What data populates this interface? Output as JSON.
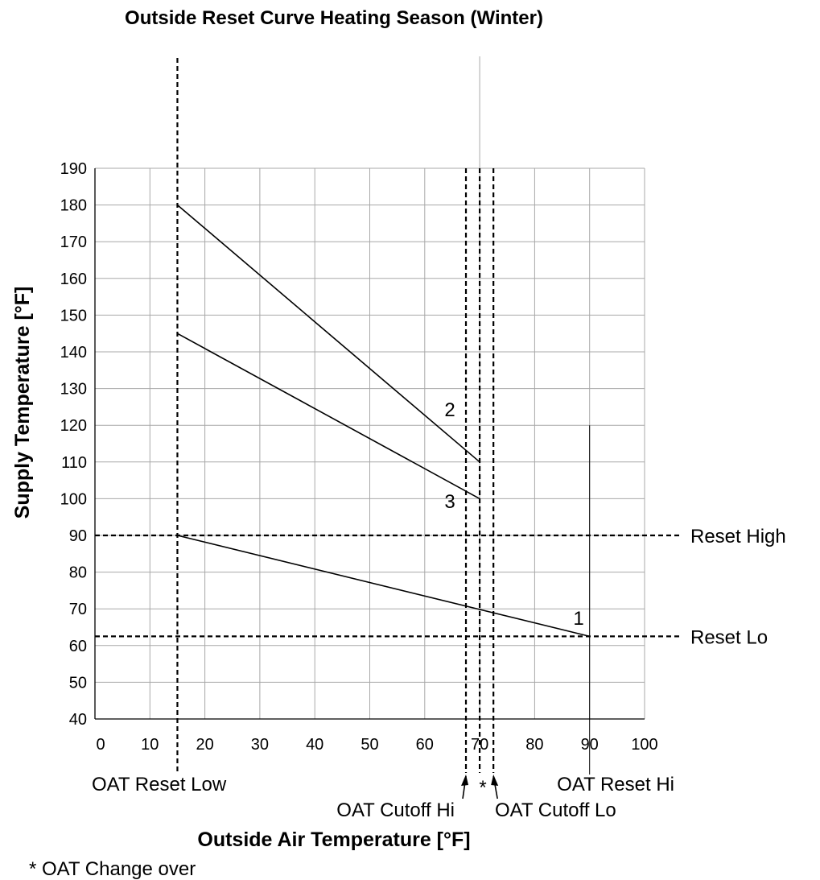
{
  "chart_data": {
    "type": "line",
    "title": "Outside Reset Curve Heating Season (Winter)",
    "xlabel": "Outside Air Temperature [°F]",
    "ylabel": "Supply Temperature [°F]",
    "xlim": [
      0,
      100
    ],
    "ylim": [
      40,
      190
    ],
    "x_ticks": [
      0,
      10,
      20,
      30,
      40,
      50,
      60,
      70,
      80,
      90,
      100
    ],
    "y_ticks": [
      40,
      50,
      60,
      70,
      80,
      90,
      100,
      110,
      120,
      130,
      140,
      150,
      160,
      170,
      180,
      190
    ],
    "x_tick_labels": [
      "0",
      "10",
      "20",
      "30",
      "40",
      "50",
      "60",
      "70",
      "80",
      "90",
      "100"
    ],
    "y_tick_labels": [
      "40",
      "50",
      "60",
      "70",
      "80",
      "90",
      "100",
      "110",
      "120",
      "130",
      "140",
      "150",
      "160",
      "170",
      "180",
      "190"
    ],
    "grid": true,
    "series": [
      {
        "label": "1",
        "x": [
          15,
          90
        ],
        "y": [
          90,
          62.5
        ]
      },
      {
        "label": "2",
        "x": [
          15,
          70
        ],
        "y": [
          180,
          110
        ]
      },
      {
        "label": "3",
        "x": [
          15,
          70
        ],
        "y": [
          145,
          100
        ]
      }
    ],
    "reference_lines": {
      "horizontal": [
        {
          "label": "Reset High",
          "y": 90
        },
        {
          "label": "Reset Lo",
          "y": 62.5
        }
      ],
      "vertical": [
        {
          "label": "OAT Reset Low",
          "x": 15
        },
        {
          "label": "OAT Cutoff Hi",
          "x": 67.5
        },
        {
          "label": "*",
          "x": 70
        },
        {
          "label": "OAT Cutoff Lo",
          "x": 72.5
        },
        {
          "label": "OAT Reset Hi",
          "x": 90,
          "y_top": 120
        }
      ]
    },
    "footnote": "* OAT Change over"
  }
}
